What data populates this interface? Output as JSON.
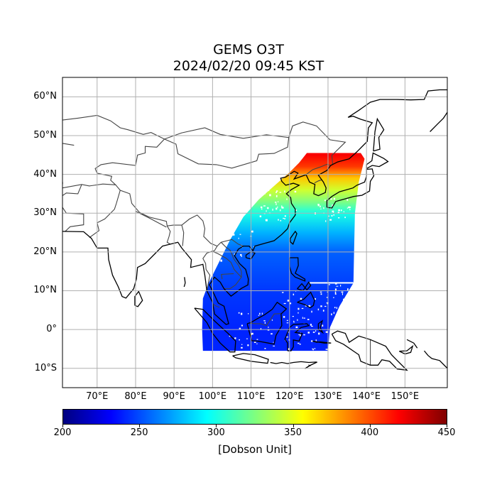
{
  "title": {
    "line1": "GEMS O3T",
    "line2": "2024/02/20 09:45 KST"
  },
  "map": {
    "lon_range": [
      61,
      161
    ],
    "lat_range": [
      -15,
      65
    ],
    "projection": "PlateCarree",
    "grid": true,
    "coastlines": true,
    "country_borders": true
  },
  "axes": {
    "lat_ticks": [
      {
        "value": 60,
        "label": "60°N"
      },
      {
        "value": 50,
        "label": "50°N"
      },
      {
        "value": 40,
        "label": "40°N"
      },
      {
        "value": 30,
        "label": "30°N"
      },
      {
        "value": 20,
        "label": "20°N"
      },
      {
        "value": 10,
        "label": "10°N"
      },
      {
        "value": 0,
        "label": "0°"
      },
      {
        "value": -10,
        "label": "10°S"
      }
    ],
    "lon_ticks": [
      {
        "value": 70,
        "label": "70°E"
      },
      {
        "value": 80,
        "label": "80°E"
      },
      {
        "value": 90,
        "label": "90°E"
      },
      {
        "value": 100,
        "label": "100°E"
      },
      {
        "value": 110,
        "label": "110°E"
      },
      {
        "value": 120,
        "label": "120°E"
      },
      {
        "value": 130,
        "label": "130°E"
      },
      {
        "value": 140,
        "label": "140°E"
      },
      {
        "value": 150,
        "label": "150°E"
      }
    ]
  },
  "colorbar": {
    "min": 200,
    "max": 450,
    "colormap": "jet",
    "ticks": [
      {
        "value": 200,
        "label": "200"
      },
      {
        "value": 250,
        "label": "250"
      },
      {
        "value": 300,
        "label": "300"
      },
      {
        "value": 350,
        "label": "350"
      },
      {
        "value": 400,
        "label": "400"
      },
      {
        "value": 450,
        "label": "450"
      }
    ],
    "label": "[Dobson Unit]"
  },
  "colors": {
    "low": "#0000ff",
    "mid": "#00ffff",
    "high": "#ff0000",
    "coastline": "#000000",
    "border": "#444444",
    "grid": "#b0b0b0"
  },
  "chart_data": {
    "type": "heatmap",
    "variable": "total column ozone",
    "units": "Dobson Unit",
    "value_range": [
      200,
      450
    ],
    "ozone_profile_by_latitude": [
      {
        "lat": -6,
        "value": 240
      },
      {
        "lat": 0,
        "value": 240
      },
      {
        "lat": 10,
        "value": 245
      },
      {
        "lat": 20,
        "value": 255
      },
      {
        "lat": 25,
        "value": 275
      },
      {
        "lat": 30,
        "value": 300
      },
      {
        "lat": 33,
        "value": 325
      },
      {
        "lat": 36,
        "value": 345
      },
      {
        "lat": 39,
        "value": 370
      },
      {
        "lat": 42,
        "value": 405
      },
      {
        "lat": 45,
        "value": 420
      }
    ]
  }
}
